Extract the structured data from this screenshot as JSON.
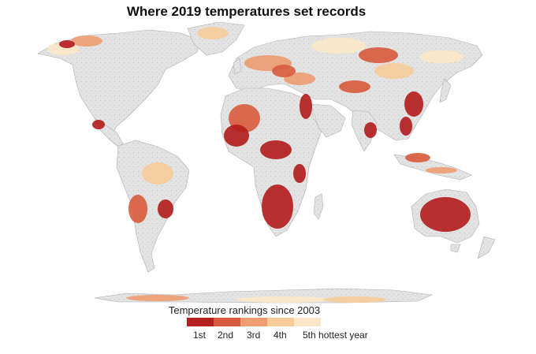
{
  "title": "Where 2019 temperatures set records",
  "legend": {
    "title": "Temperature rankings since 2003",
    "items": [
      {
        "label": "1st",
        "color": "#b41f1f"
      },
      {
        "label": "2nd",
        "color": "#d85a3c"
      },
      {
        "label": "3rd",
        "color": "#ee9c70"
      },
      {
        "label": "4th",
        "color": "#f6cc99"
      },
      {
        "label": "5th hottest year",
        "color": "#fbe7c7"
      }
    ]
  },
  "colors": {
    "land_no_record": "#dcdcdc",
    "land_border": "#b0b0b0",
    "background": "#ffffff"
  }
}
